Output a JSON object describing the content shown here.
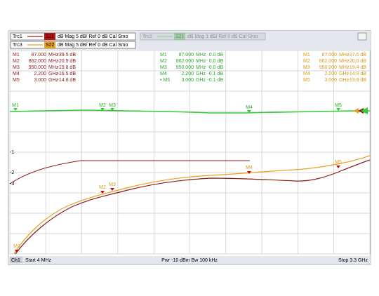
{
  "header": {
    "traces": [
      {
        "label": "Trc1",
        "param": "S11",
        "format": "dB Mag 5 dB/ Ref 0 dB Cal Smo"
      },
      {
        "label": "Trc3",
        "param": "S22",
        "format": "dB Mag 5 dB/ Ref 0 dB Cal Smo"
      },
      {
        "label": "Trc2",
        "param": "S21",
        "format": "dB Mag 1 dB/ Ref 0 dB Cal Smo"
      }
    ]
  },
  "marker_tables": [
    {
      "rows": [
        [
          "M1",
          "87.000",
          "MHz",
          "-39.5 dB"
        ],
        [
          "M2",
          "862.000",
          "MHz",
          "-20.5 dB"
        ],
        [
          "M3",
          "950.000",
          "MHz",
          "-19.8 dB"
        ],
        [
          "M4",
          "2.200",
          "GHz",
          "-16.5 dB"
        ],
        [
          "M5",
          "3.000",
          "GHz",
          "-14.8 dB"
        ]
      ]
    },
    {
      "rows": [
        [
          "M1",
          "87.000",
          "MHz",
          "0.0 dB"
        ],
        [
          "M2",
          "862.000",
          "MHz",
          "0.0 dB"
        ],
        [
          "M3",
          "950.000",
          "MHz",
          "-0.0 dB"
        ],
        [
          "M4",
          "2.200",
          "GHz",
          "-0.1 dB"
        ],
        [
          "• M5",
          "3.000",
          "GHz",
          "-0.1 dB"
        ]
      ]
    },
    {
      "rows": [
        [
          "M1",
          "87.000",
          "MHz",
          "-37.6 dB"
        ],
        [
          "M2",
          "862.000",
          "MHz",
          "-20.0 dB"
        ],
        [
          "M3",
          "950.000",
          "MHz",
          "-19.4 dB"
        ],
        [
          "M4",
          "2.200",
          "GHz",
          "-14.9 dB"
        ],
        [
          "M5",
          "3.000",
          "GHz",
          "-13.9 dB"
        ]
      ]
    }
  ],
  "axis_labels": [
    "-1",
    "-2",
    "-3"
  ],
  "plot_markers": {
    "green": [
      "M1",
      "M2",
      "M3",
      "M4",
      "M5"
    ],
    "red": [
      "M1",
      "M2",
      "M3",
      "M4",
      "M5"
    ]
  },
  "footer": {
    "channel": "Ch1",
    "start": "Start 4 MHz",
    "power": "Pwr -10 dBm  Bw 100 kHz",
    "stop": "Stop 3.3 GHz"
  }
}
